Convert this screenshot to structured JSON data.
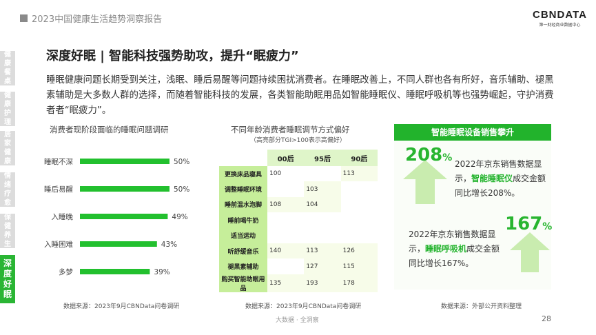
{
  "header": {
    "report_title": "2023中国健康生活趋势洞察报告",
    "logo_text": "CBNDATA",
    "logo_sub": "第一财经商业数据中心"
  },
  "side_nav": {
    "items": [
      "健康餐桌",
      "健康护理",
      "居家健康",
      "情绪疗愈",
      "保健养生",
      "深度好眠"
    ],
    "active_index": 5
  },
  "heading": "深度好眠 | 智能科技强势助攻，提升“眠疲力”",
  "intro": "睡眠健康问题长期受到关注，浅眠、睡后易醒等问题持续困扰消费者。在睡眠改善上，不同人群也各有所好，音乐辅助、褪黑素辅助是大多数人群的选择，而随着智能科技的发展，各类智能助眠用品如智能睡眠仪、睡眠呼吸机等也强势崛起，守护消费者者“眠疲力”。",
  "chart_data": [
    {
      "type": "bar",
      "title": "消费者现阶段面临的睡眠问题调研",
      "categories": [
        "睡眠不深",
        "睡后易醒",
        "入睡晚",
        "入睡困难",
        "多梦"
      ],
      "values": [
        50,
        50,
        49,
        43,
        39
      ],
      "value_labels": [
        "50%",
        "50%",
        "49%",
        "43%",
        "39%"
      ],
      "orientation": "horizontal",
      "color": "#22c02e",
      "source": "数据来源：2023年9月CBNData问卷调研"
    },
    {
      "type": "table",
      "title": "不同年龄消费者睡眠调节方式偏好",
      "subtitle": "（高亮部分TGI>100表示高偏好）",
      "columns": [
        "00后",
        "95后",
        "90后"
      ],
      "rows": [
        {
          "label": "更换床品寝具",
          "values": [
            "100",
            "",
            "113"
          ]
        },
        {
          "label": "调整睡眠环境",
          "values": [
            "",
            "103",
            ""
          ]
        },
        {
          "label": "睡前温水泡脚",
          "values": [
            "108",
            "104",
            ""
          ]
        },
        {
          "label": "睡前喝牛奶",
          "values": [
            "",
            "",
            ""
          ]
        },
        {
          "label": "适当运动",
          "values": [
            "",
            "",
            ""
          ]
        },
        {
          "label": "听舒缓音乐",
          "values": [
            "140",
            "113",
            "126"
          ]
        },
        {
          "label": "褪黑素辅助",
          "values": [
            "",
            "127",
            "115"
          ]
        },
        {
          "label": "购买智能助眠用品",
          "values": [
            "135",
            "193",
            "178"
          ]
        }
      ],
      "source": "数据来源：2023年9月CBNData问卷调研"
    }
  ],
  "right_panel": {
    "title": "智能睡眠设备销售攀升",
    "stat1": {
      "number": "208",
      "unit": "%",
      "text_pre": "2022年京东销售数据显示，",
      "highlight": "智能睡眠仪",
      "text_post": "成交金额同比增长208%。"
    },
    "stat2": {
      "number": "167",
      "unit": "%",
      "text_pre": "2022年京东销售数据显示，",
      "highlight": "睡眠呼吸机",
      "text_post": "成交金额同比增长167%。"
    },
    "source": "数据来源：外部公开资料整理"
  },
  "footer": {
    "text": "大数据 · 全洞察",
    "page_number": "28"
  },
  "colors": {
    "accent": "#22b32c",
    "table_label_bg": "#c6ee9a",
    "table_highlight": "#f7fce9"
  }
}
